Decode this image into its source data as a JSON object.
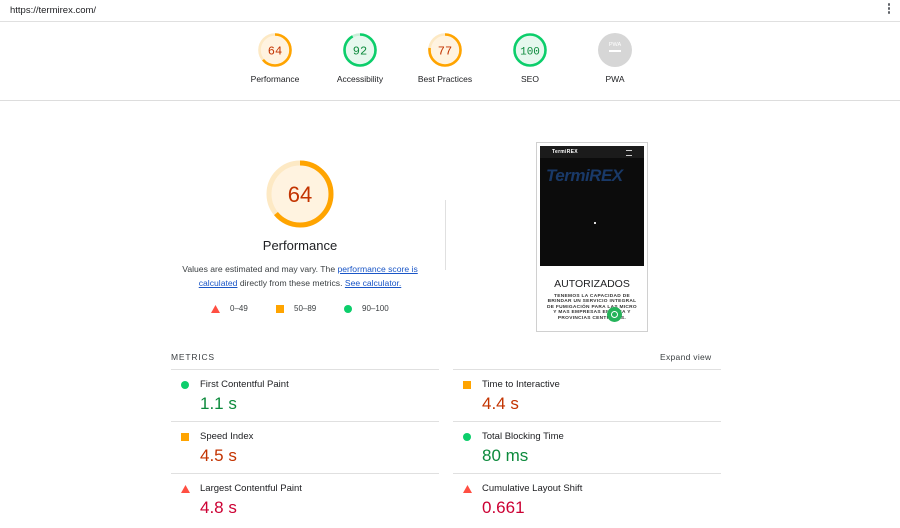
{
  "browser": {
    "url": "https://termirex.com/"
  },
  "categories": [
    {
      "name": "Performance",
      "score": "64",
      "level": "average"
    },
    {
      "name": "Accessibility",
      "score": "92",
      "level": "pass"
    },
    {
      "name": "Best Practices",
      "score": "77",
      "level": "average"
    },
    {
      "name": "SEO",
      "score": "100",
      "level": "pass"
    },
    {
      "name": "PWA",
      "score": "PWA",
      "level": "na"
    }
  ],
  "performance": {
    "score": "64",
    "title": "Performance",
    "desc_prefix": "Values are estimated and may vary. The ",
    "link1": "performance score is calculated",
    "desc_mid": " directly from these metrics. ",
    "link2": "See calculator."
  },
  "legend": [
    {
      "range": "0–49",
      "shape": "triangle"
    },
    {
      "range": "50–89",
      "shape": "square"
    },
    {
      "range": "90–100",
      "shape": "circle"
    }
  ],
  "screenshot": {
    "site_logo": "TermiREX",
    "brand": "TermiREX",
    "headline": "AUTORIZADOS",
    "body": "TENEMOS LA CAPACIDAD DE BRINDAR UN SERVICIO INTEGRAL DE FUMIGACIÓN PARA LAS MICRO Y MAS EMPRESAS EN PARA Y PROVINCIAS CENTRALES."
  },
  "metrics": {
    "heading": "METRICS",
    "expand": "Expand view",
    "items": [
      {
        "label": "First Contentful Paint",
        "value": "1.1 s",
        "level": "pass"
      },
      {
        "label": "Time to Interactive",
        "value": "4.4 s",
        "level": "average"
      },
      {
        "label": "Speed Index",
        "value": "4.5 s",
        "level": "average"
      },
      {
        "label": "Total Blocking Time",
        "value": "80 ms",
        "level": "pass"
      },
      {
        "label": "Largest Contentful Paint",
        "value": "4.8 s",
        "level": "fail"
      },
      {
        "label": "Cumulative Layout Shift",
        "value": "0.661",
        "level": "fail"
      }
    ]
  },
  "colors": {
    "pass": "#0cce6b",
    "average": "#ffa400",
    "fail": "#ff4e42",
    "pass_text": "#0c8a3c",
    "average_text": "#c33300",
    "fail_text": "#cc0033"
  }
}
